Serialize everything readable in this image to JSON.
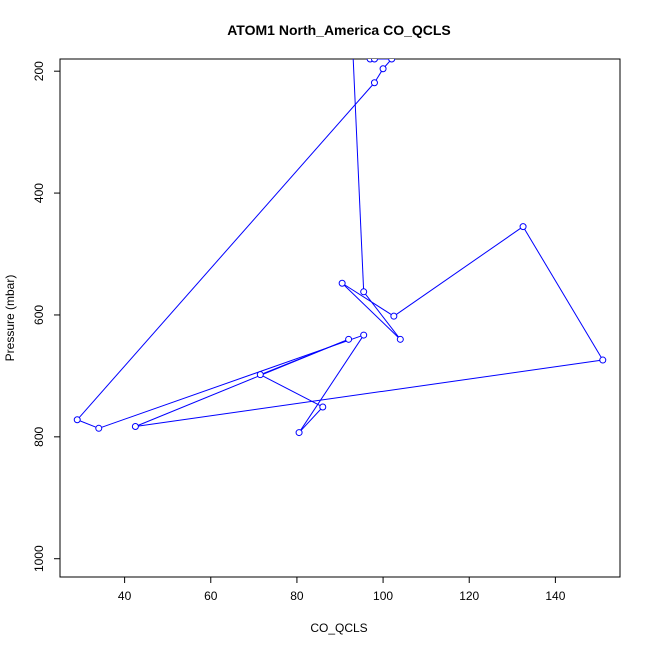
{
  "chart_data": {
    "type": "line",
    "title": "ATOM1 North_America CO_QCLS",
    "xlabel": "CO_QCLS",
    "ylabel": "Pressure (mbar)",
    "xlim": [
      25,
      155
    ],
    "ylim": [
      1030,
      180
    ],
    "y_reversed": true,
    "x_ticks": [
      40,
      60,
      80,
      100,
      120,
      140
    ],
    "y_ticks": [
      200,
      400,
      600,
      800,
      1000
    ],
    "grid": false,
    "legend": "none",
    "series_color": "#0000ff",
    "marker": "open-circle",
    "series": [
      {
        "x": [
          97,
          93,
          95.5,
          104,
          90.5,
          102.5,
          132.5,
          151,
          42.5,
          92,
          71.5,
          86,
          80.5,
          95.5,
          34,
          29,
          98,
          100,
          102,
          98
        ],
        "y": [
          180,
          170,
          562,
          640,
          548,
          602,
          455,
          674,
          783,
          640,
          698,
          751,
          793,
          633,
          786,
          772,
          219,
          196,
          180,
          180
        ]
      }
    ]
  }
}
